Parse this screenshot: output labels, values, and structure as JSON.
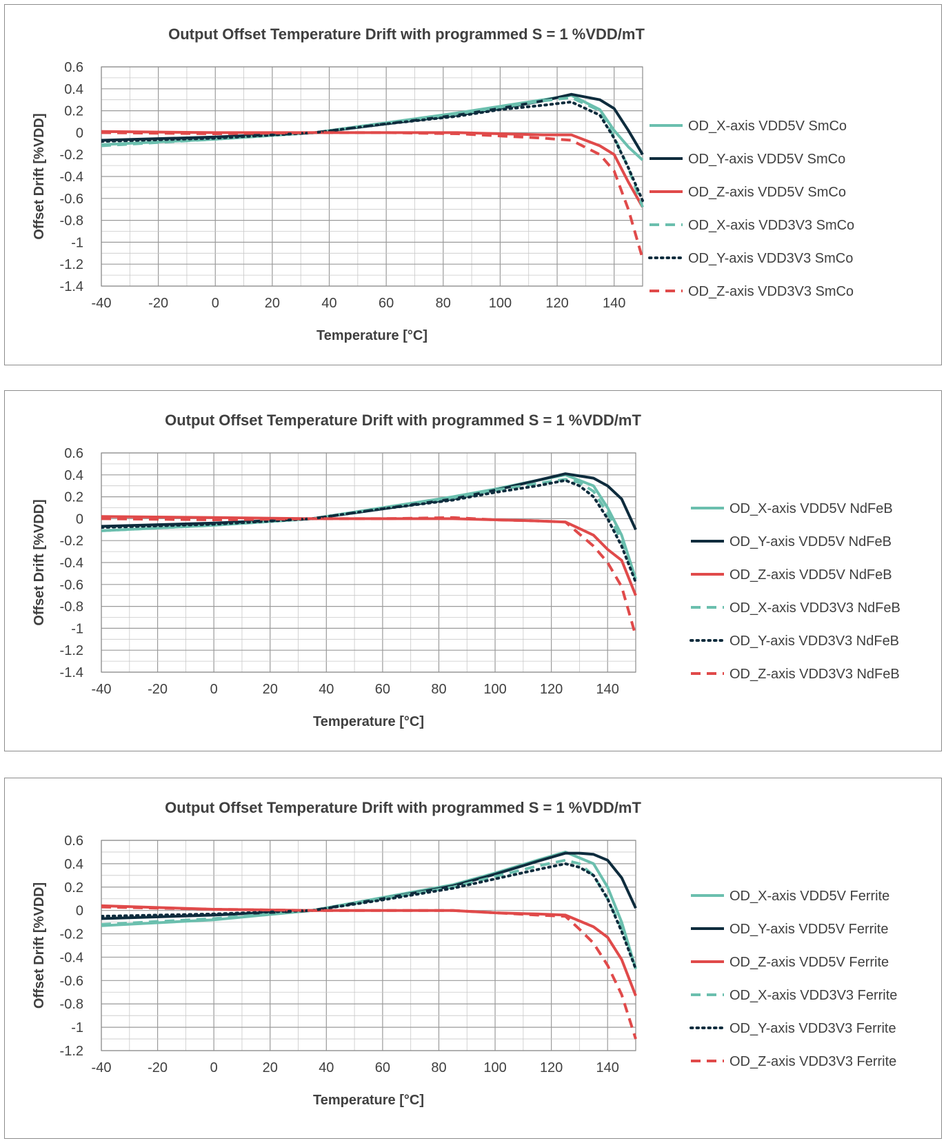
{
  "chart_data": [
    {
      "type": "line",
      "title": "Output Offset Temperature Drift with programmed S = 1 %VDD/mT",
      "xlabel": "Temperature [°C]",
      "ylabel": "Offset Drift [%VDD]",
      "xlim": [
        -40,
        150
      ],
      "ylim": [
        -1.4,
        0.6
      ],
      "xticks": [
        -40,
        -20,
        0,
        20,
        40,
        60,
        80,
        100,
        120,
        140
      ],
      "yticks": [
        0.6,
        0.4,
        0.2,
        0,
        -0.2,
        -0.4,
        -0.6,
        -0.8,
        -1,
        -1.2,
        -1.4
      ],
      "yticklabels": [
        "0.6",
        "0.4",
        "0.2",
        "0",
        "-0.2",
        "-0.4",
        "-0.6",
        "-0.8",
        "-1",
        "-1.2",
        "-1.4"
      ],
      "grid": true,
      "legend_position": "right",
      "series": [
        {
          "name": "OD_X-axis VDD5V SmCo",
          "color": "#6bbfae",
          "style": "solid",
          "x": [
            -40,
            0,
            35,
            60,
            85,
            100,
            115,
            125,
            135,
            140,
            145,
            150
          ],
          "y": [
            -0.11,
            -0.06,
            0,
            0.09,
            0.18,
            0.24,
            0.3,
            0.34,
            0.21,
            0.02,
            -0.13,
            -0.25
          ]
        },
        {
          "name": "OD_Y-axis VDD5V SmCo",
          "color": "#0e2c3d",
          "style": "solid",
          "x": [
            -40,
            0,
            35,
            60,
            85,
            100,
            115,
            125,
            135,
            140,
            145,
            150
          ],
          "y": [
            -0.07,
            -0.04,
            0,
            0.08,
            0.16,
            0.22,
            0.29,
            0.35,
            0.3,
            0.22,
            0.02,
            -0.2
          ]
        },
        {
          "name": "OD_Z-axis VDD5V SmCo",
          "color": "#e04a4a",
          "style": "solid",
          "x": [
            -40,
            0,
            35,
            60,
            85,
            100,
            115,
            125,
            135,
            140,
            145,
            150
          ],
          "y": [
            0.01,
            0.0,
            0,
            0.0,
            0.0,
            -0.01,
            -0.02,
            -0.02,
            -0.12,
            -0.2,
            -0.45,
            -0.68
          ]
        },
        {
          "name": "OD_X-axis VDD3V3 SmCo",
          "color": "#6bbfae",
          "style": "dashed",
          "x": [
            -40,
            0,
            35,
            60,
            85,
            100,
            115,
            125,
            135,
            140,
            145,
            150
          ],
          "y": [
            -0.12,
            -0.06,
            0,
            0.09,
            0.17,
            0.23,
            0.29,
            0.32,
            0.2,
            -0.04,
            -0.32,
            -0.68
          ]
        },
        {
          "name": "OD_Y-axis VDD3V3 SmCo",
          "color": "#0e2c3d",
          "style": "dotted",
          "x": [
            -40,
            0,
            35,
            60,
            85,
            100,
            115,
            125,
            135,
            140,
            145,
            150
          ],
          "y": [
            -0.08,
            -0.05,
            0,
            0.08,
            0.15,
            0.21,
            0.25,
            0.28,
            0.16,
            -0.05,
            -0.32,
            -0.62
          ]
        },
        {
          "name": "OD_Z-axis VDD3V3 SmCo",
          "color": "#e04a4a",
          "style": "dashed",
          "x": [
            -40,
            0,
            35,
            60,
            85,
            100,
            115,
            125,
            135,
            140,
            145,
            150
          ],
          "y": [
            0.0,
            -0.01,
            0,
            0.0,
            -0.01,
            -0.03,
            -0.05,
            -0.07,
            -0.2,
            -0.35,
            -0.7,
            -1.15
          ]
        }
      ]
    },
    {
      "type": "line",
      "title": "Output Offset Temperature Drift with programmed S = 1 %VDD/mT",
      "xlabel": "Temperature [°C]",
      "ylabel": "Offset Drift [%VDD]",
      "xlim": [
        -40,
        150
      ],
      "ylim": [
        -1.4,
        0.6
      ],
      "xticks": [
        -40,
        -20,
        0,
        20,
        40,
        60,
        80,
        100,
        120,
        140
      ],
      "yticks": [
        0.6,
        0.4,
        0.2,
        0,
        -0.2,
        -0.4,
        -0.6,
        -0.8,
        -1,
        -1.2,
        -1.4
      ],
      "yticklabels": [
        "0.6",
        "0.4",
        "0.2",
        "0",
        "-0.2",
        "-0.4",
        "-0.6",
        "-0.8",
        "-1",
        "-1.2",
        "-1.4"
      ],
      "grid": true,
      "legend_position": "right",
      "series": [
        {
          "name": "OD_X-axis VDD5V NdFeB",
          "color": "#6bbfae",
          "style": "solid",
          "x": [
            -40,
            0,
            35,
            60,
            85,
            100,
            115,
            125,
            130,
            135,
            140,
            145,
            150
          ],
          "y": [
            -0.11,
            -0.06,
            0,
            0.1,
            0.2,
            0.27,
            0.35,
            0.4,
            0.35,
            0.3,
            0.1,
            -0.15,
            -0.55
          ]
        },
        {
          "name": "OD_Y-axis VDD5V NdFeB",
          "color": "#0e2c3d",
          "style": "solid",
          "x": [
            -40,
            0,
            35,
            60,
            85,
            100,
            115,
            125,
            130,
            135,
            140,
            145,
            150
          ],
          "y": [
            -0.07,
            -0.04,
            0,
            0.09,
            0.18,
            0.26,
            0.35,
            0.41,
            0.39,
            0.37,
            0.3,
            0.18,
            -0.1
          ]
        },
        {
          "name": "OD_Z-axis VDD5V NdFeB",
          "color": "#e04a4a",
          "style": "solid",
          "x": [
            -40,
            0,
            35,
            60,
            85,
            100,
            115,
            125,
            130,
            135,
            140,
            145,
            150
          ],
          "y": [
            0.02,
            0.01,
            0,
            0.0,
            0.0,
            -0.01,
            -0.02,
            -0.03,
            -0.09,
            -0.15,
            -0.28,
            -0.38,
            -0.7
          ]
        },
        {
          "name": "OD_X-axis VDD3V3 NdFeB",
          "color": "#6bbfae",
          "style": "dashed",
          "x": [
            -40,
            0,
            35,
            60,
            85,
            100,
            115,
            125,
            130,
            135,
            140,
            145,
            150
          ],
          "y": [
            -0.11,
            -0.06,
            0,
            0.1,
            0.19,
            0.26,
            0.32,
            0.36,
            0.33,
            0.25,
            0.05,
            -0.2,
            -0.55
          ]
        },
        {
          "name": "OD_Y-axis VDD3V3 NdFeB",
          "color": "#0e2c3d",
          "style": "dotted",
          "x": [
            -40,
            0,
            35,
            60,
            85,
            100,
            115,
            125,
            130,
            135,
            140,
            145,
            150
          ],
          "y": [
            -0.08,
            -0.05,
            0,
            0.09,
            0.17,
            0.24,
            0.3,
            0.35,
            0.3,
            0.2,
            0.0,
            -0.25,
            -0.58
          ]
        },
        {
          "name": "OD_Z-axis VDD3V3 NdFeB",
          "color": "#e04a4a",
          "style": "dashed",
          "x": [
            -40,
            0,
            35,
            60,
            85,
            100,
            115,
            125,
            130,
            135,
            140,
            145,
            150
          ],
          "y": [
            0.0,
            -0.01,
            0,
            0.0,
            0.01,
            -0.01,
            -0.02,
            -0.03,
            -0.14,
            -0.25,
            -0.4,
            -0.62,
            -1.07
          ]
        }
      ]
    },
    {
      "type": "line",
      "title": "Output Offset Temperature Drift with programmed S = 1 %VDD/mT",
      "xlabel": "Temperature [°C]",
      "ylabel": "Offset Drift [%VDD]",
      "xlim": [
        -40,
        150
      ],
      "ylim": [
        -1.2,
        0.6
      ],
      "xticks": [
        -40,
        -20,
        0,
        20,
        40,
        60,
        80,
        100,
        120,
        140
      ],
      "yticks": [
        0.6,
        0.4,
        0.2,
        0,
        -0.2,
        -0.4,
        -0.6,
        -0.8,
        -1,
        -1.2
      ],
      "yticklabels": [
        "0.6",
        "0.4",
        "0.2",
        "0",
        "-0.2",
        "-0.4",
        "-0.6",
        "-0.8",
        "-1",
        "-1.2"
      ],
      "grid": true,
      "legend_position": "right",
      "series": [
        {
          "name": "OD_X-axis VDD5V Ferrite",
          "color": "#6bbfae",
          "style": "solid",
          "x": [
            -40,
            0,
            35,
            60,
            85,
            100,
            115,
            125,
            130,
            135,
            140,
            145,
            150
          ],
          "y": [
            -0.13,
            -0.08,
            0,
            0.11,
            0.22,
            0.32,
            0.43,
            0.5,
            0.45,
            0.4,
            0.2,
            -0.1,
            -0.5
          ]
        },
        {
          "name": "OD_Y-axis VDD5V Ferrite",
          "color": "#0e2c3d",
          "style": "solid",
          "x": [
            -40,
            0,
            35,
            60,
            85,
            100,
            115,
            125,
            130,
            135,
            140,
            145,
            150
          ],
          "y": [
            -0.07,
            -0.04,
            0,
            0.1,
            0.21,
            0.31,
            0.42,
            0.49,
            0.49,
            0.48,
            0.43,
            0.28,
            0.02
          ]
        },
        {
          "name": "OD_Z-axis VDD5V Ferrite",
          "color": "#e04a4a",
          "style": "solid",
          "x": [
            -40,
            0,
            35,
            60,
            85,
            100,
            115,
            125,
            130,
            135,
            140,
            145,
            150
          ],
          "y": [
            0.04,
            0.01,
            0,
            0.0,
            0.0,
            -0.02,
            -0.03,
            -0.04,
            -0.09,
            -0.14,
            -0.23,
            -0.42,
            -0.73
          ]
        },
        {
          "name": "OD_X-axis VDD3V3 Ferrite",
          "color": "#6bbfae",
          "style": "dashed",
          "x": [
            -40,
            0,
            35,
            60,
            85,
            100,
            115,
            125,
            130,
            135,
            140,
            145,
            150
          ],
          "y": [
            -0.12,
            -0.07,
            0,
            0.1,
            0.2,
            0.29,
            0.38,
            0.43,
            0.4,
            0.3,
            0.1,
            -0.15,
            -0.5
          ]
        },
        {
          "name": "OD_Y-axis VDD3V3 Ferrite",
          "color": "#0e2c3d",
          "style": "dotted",
          "x": [
            -40,
            0,
            35,
            60,
            85,
            100,
            115,
            125,
            130,
            135,
            140,
            145,
            150
          ],
          "y": [
            -0.05,
            -0.03,
            0,
            0.09,
            0.19,
            0.27,
            0.35,
            0.4,
            0.37,
            0.3,
            0.1,
            -0.18,
            -0.5
          ]
        },
        {
          "name": "OD_Z-axis VDD3V3 Ferrite",
          "color": "#e04a4a",
          "style": "dashed",
          "x": [
            -40,
            0,
            35,
            60,
            85,
            100,
            115,
            125,
            130,
            135,
            140,
            145,
            150
          ],
          "y": [
            0.03,
            0.01,
            0,
            0.0,
            0.0,
            -0.02,
            -0.04,
            -0.05,
            -0.16,
            -0.28,
            -0.47,
            -0.72,
            -1.1
          ]
        }
      ]
    }
  ]
}
